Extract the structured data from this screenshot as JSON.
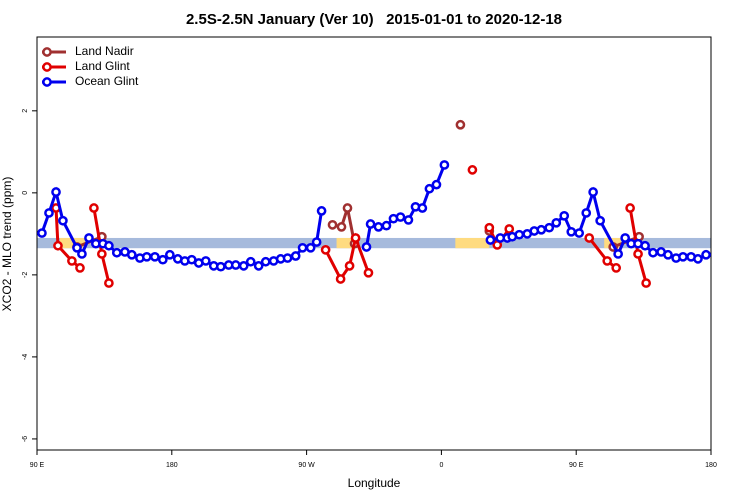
{
  "chart_data": {
    "type": "line",
    "title": "2.5S-2.5N January (Ver 10)   2015-01-01 to 2020-12-18",
    "x_label": "Longitude",
    "y_label": "XCO2 - MLO trend (ppm)",
    "xlim": [
      90,
      540
    ],
    "ylim": [
      -6.27,
      3.8
    ],
    "xticks": [
      {
        "value": 90,
        "label": "90 E"
      },
      {
        "value": 180,
        "label": "180"
      },
      {
        "value": 270,
        "label": "90 W"
      },
      {
        "value": 360,
        "label": "0"
      },
      {
        "value": 450,
        "label": "90 E"
      },
      {
        "value": 540,
        "label": "180"
      }
    ],
    "yticks": [
      2,
      0,
      -2,
      -4,
      -6
    ],
    "legend": "top-left",
    "band": {
      "ylim": [
        -1.35,
        -1.1
      ],
      "color": "#a6badc",
      "segment_color": "#fedb80",
      "segments": [
        [
          105.3,
          122
        ],
        [
          290,
          303.3
        ],
        [
          369.3,
          392
        ],
        [
          468.7,
          480
        ]
      ]
    },
    "series": [
      {
        "name": "Land Nadir",
        "color": "#a03030",
        "x": [
          116.7,
          133.3,
          200,
          287.3,
          293.3,
          297.3,
          302,
          340,
          372.7,
          380,
          392,
          430,
          474.7,
          492
        ],
        "values": [
          -1.32,
          -1.07,
          null,
          -0.78,
          -0.83,
          -0.37,
          -1.24,
          null,
          1.66,
          null,
          -0.93,
          null,
          -1.32,
          -1.07
        ]
      },
      {
        "name": "Land Glint",
        "color": "#e00000",
        "x": [
          102.7,
          104,
          113.3,
          118.7,
          123,
          128,
          133.3,
          138,
          200,
          282.7,
          292.7,
          298.7,
          302.7,
          311.3,
          350,
          380.7,
          385,
          392,
          397.3,
          405.3,
          430,
          458.7,
          470.7,
          476.7,
          480,
          486,
          491.3,
          496.7
        ],
        "values": [
          -0.37,
          -1.29,
          -1.66,
          -1.83,
          null,
          -0.37,
          -1.49,
          -2.2,
          null,
          -1.39,
          -2.1,
          -1.78,
          -1.1,
          -1.95,
          null,
          0.56,
          null,
          -0.85,
          -1.27,
          -0.88,
          null,
          -1.1,
          -1.66,
          -1.83,
          null,
          -0.37,
          -1.49,
          -2.2
        ]
      },
      {
        "name": "Ocean Glint",
        "color": "#0000ee",
        "x": [
          93.3,
          98,
          102.7,
          107.3,
          116.7,
          120,
          124.7,
          129.3,
          134,
          138,
          143.3,
          148.7,
          153.3,
          158.7,
          163.3,
          168.7,
          174,
          178.7,
          184,
          188.7,
          193.3,
          198,
          202.7,
          208,
          212.7,
          218,
          222.7,
          228,
          232.7,
          238,
          242.7,
          248,
          252.7,
          257.3,
          262.7,
          267.3,
          272.7,
          276.7,
          280,
          300,
          310,
          312.7,
          318,
          323.3,
          328,
          332.7,
          338,
          342.7,
          347.3,
          352,
          356.7,
          362,
          380,
          392.7,
          399.3,
          404,
          407.3,
          412,
          417.3,
          422,
          426.7,
          432,
          436.7,
          442,
          446.7,
          452,
          456.7,
          461.3,
          466,
          478,
          482.7,
          486.7,
          491.3,
          496,
          501.3,
          506.7,
          511.3,
          516.7,
          521.3,
          526.7,
          531.3,
          536.7
        ],
        "values": [
          -0.98,
          -0.49,
          0.02,
          -0.68,
          -1.34,
          -1.49,
          -1.1,
          -1.24,
          -1.24,
          -1.29,
          -1.46,
          -1.44,
          -1.51,
          -1.59,
          -1.56,
          -1.56,
          -1.63,
          -1.51,
          -1.61,
          -1.66,
          -1.63,
          -1.71,
          -1.66,
          -1.78,
          -1.8,
          -1.76,
          -1.76,
          -1.78,
          -1.68,
          -1.78,
          -1.68,
          -1.66,
          -1.61,
          -1.59,
          -1.54,
          -1.34,
          -1.34,
          -1.2,
          -0.44,
          null,
          -1.32,
          -0.76,
          -0.83,
          -0.8,
          -0.63,
          -0.59,
          -0.66,
          -0.34,
          -0.37,
          0.1,
          0.2,
          0.68,
          null,
          -1.15,
          -1.1,
          -1.1,
          -1.07,
          -1.02,
          -1.0,
          -0.93,
          -0.9,
          -0.85,
          -0.73,
          -0.56,
          -0.95,
          -0.98,
          -0.49,
          0.02,
          -0.68,
          -1.49,
          -1.1,
          -1.24,
          -1.24,
          -1.29,
          -1.46,
          -1.44,
          -1.51,
          -1.59,
          -1.56,
          -1.56,
          -1.61,
          -1.51
        ]
      }
    ]
  }
}
